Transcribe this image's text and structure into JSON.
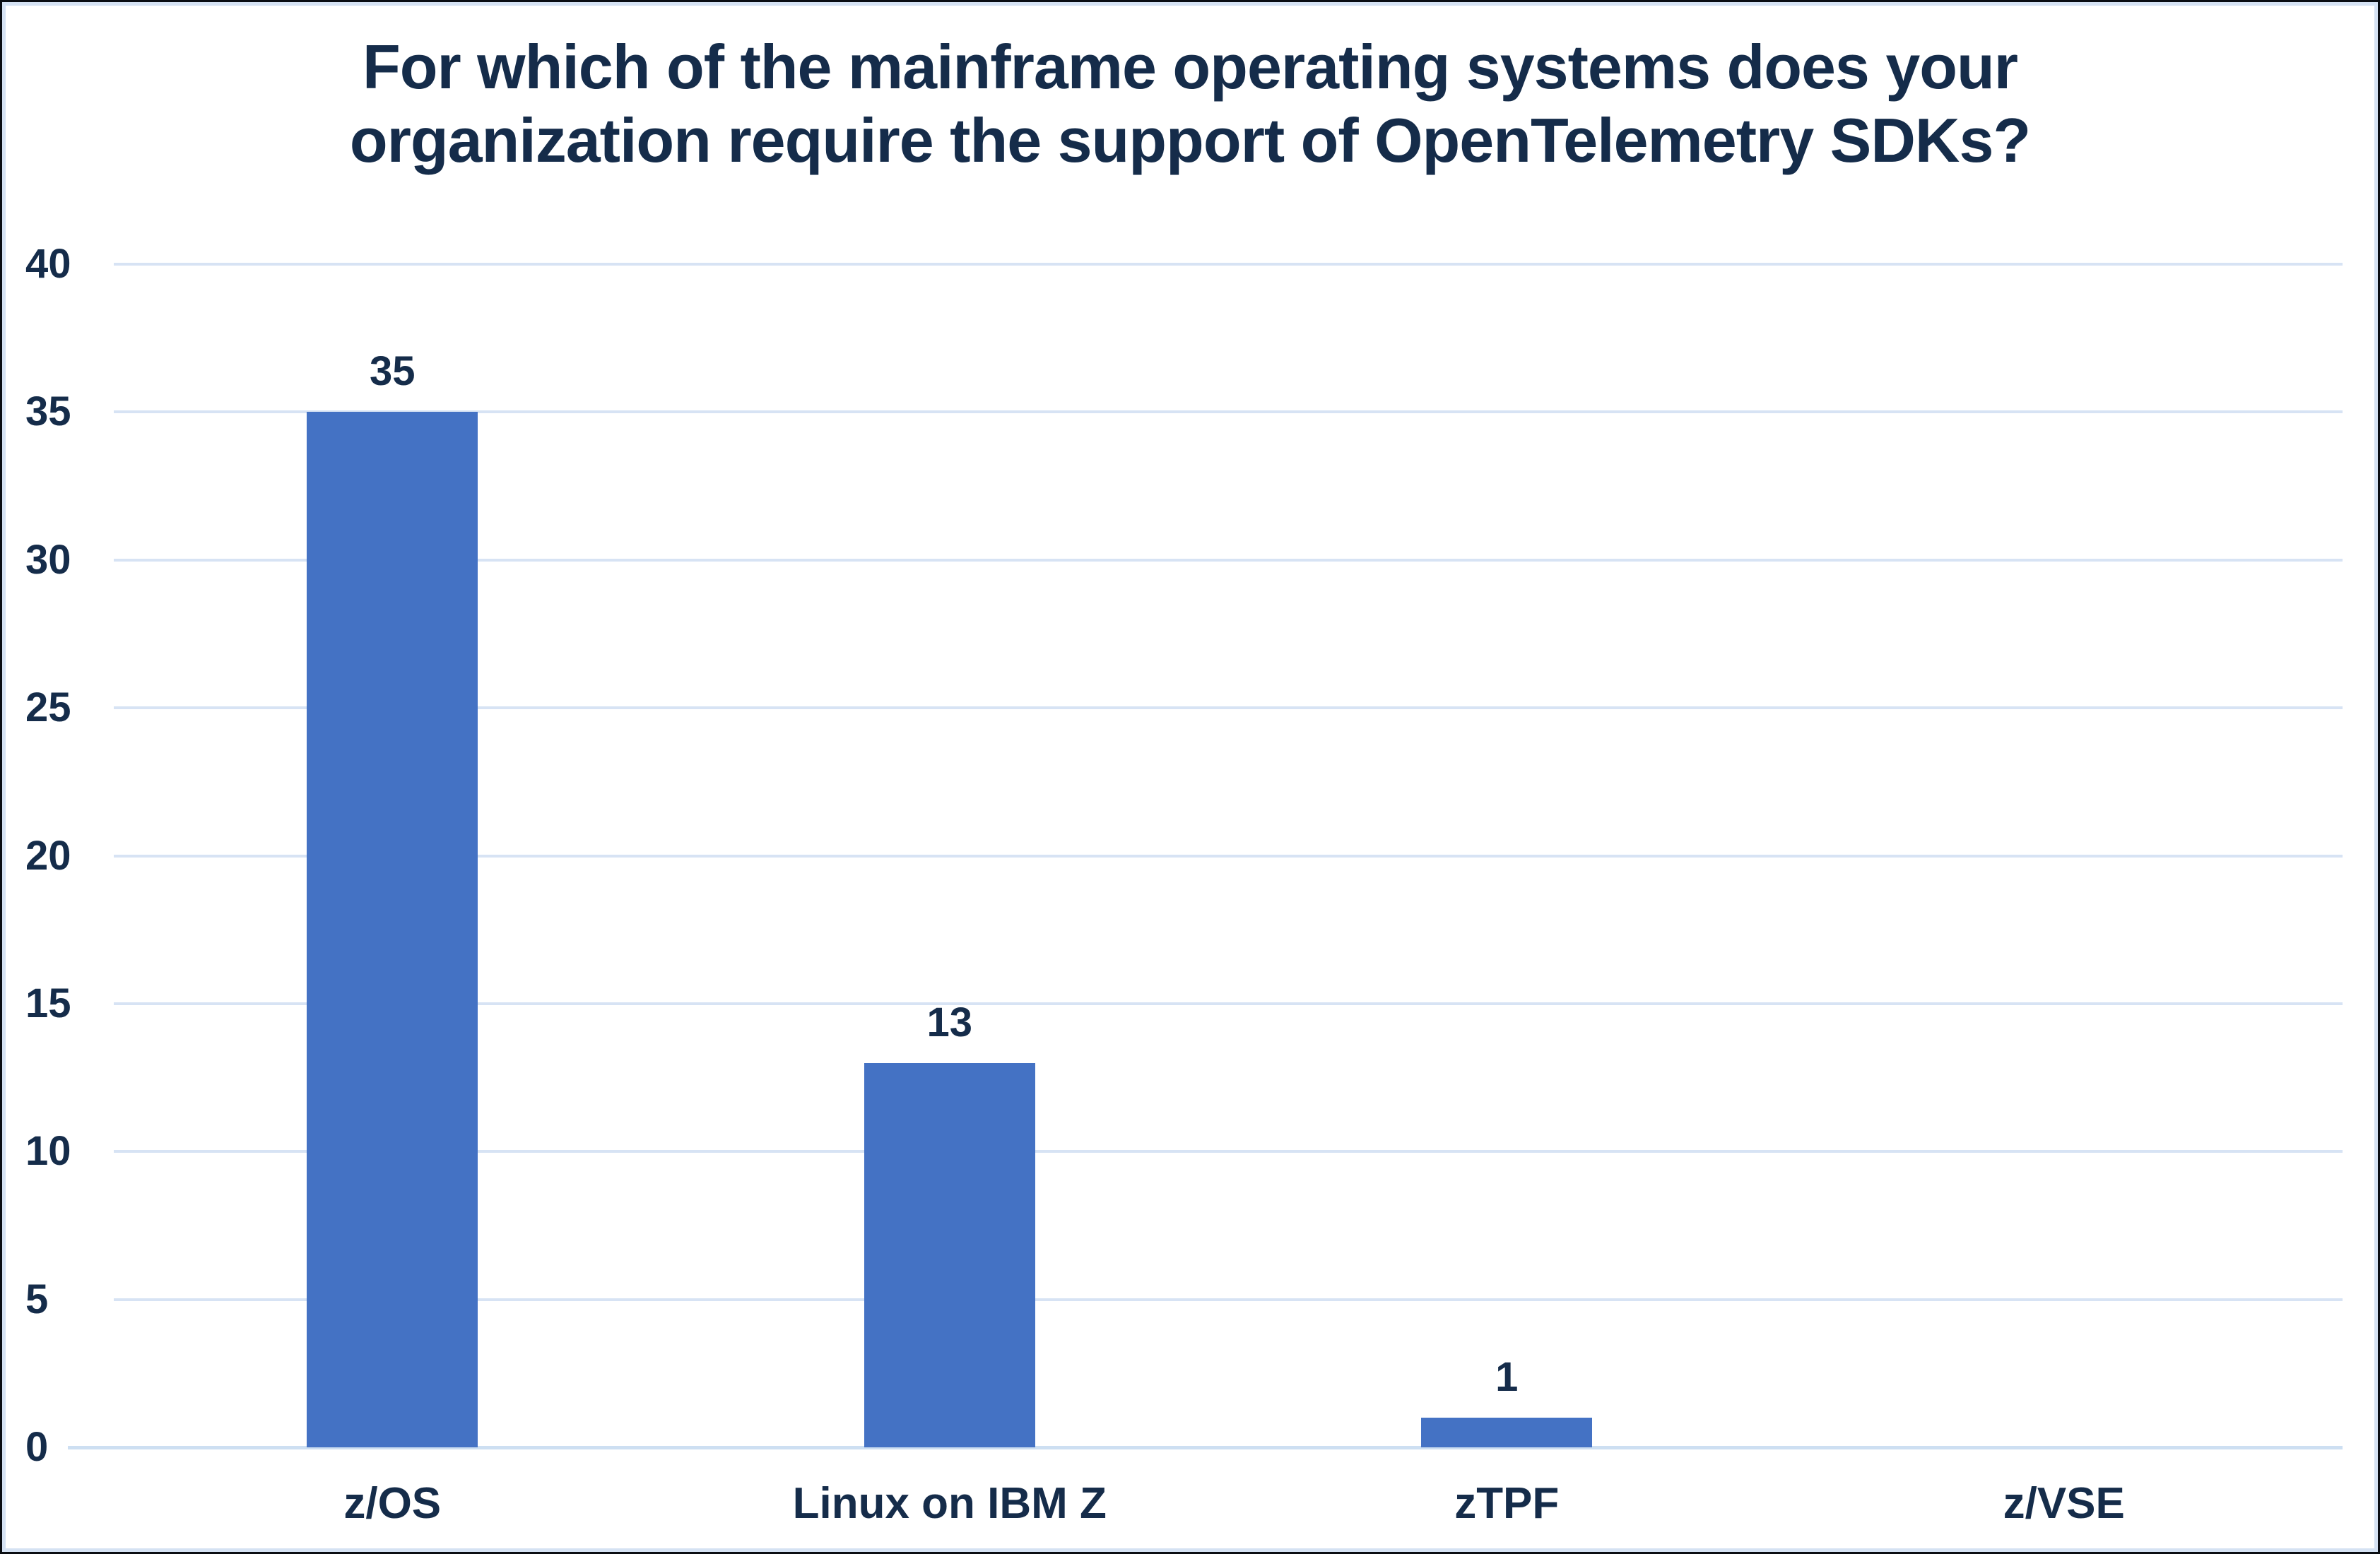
{
  "chart_data": {
    "type": "bar",
    "title": "For which of the mainframe operating systems does your\norganization require the support of OpenTelemetry SDKs?",
    "categories": [
      "z/OS",
      "Linux on IBM Z",
      "zTPF",
      "z/VSE"
    ],
    "values": [
      35,
      13,
      1,
      0
    ],
    "data_labels": [
      "35",
      "13",
      "1",
      ""
    ],
    "xlabel": "",
    "ylabel": "",
    "ylim": [
      0,
      40
    ],
    "ytick_step": 5,
    "ytick_labels": [
      "0",
      "5",
      "10",
      "15",
      "20",
      "25",
      "30",
      "35",
      "40"
    ],
    "grid": true,
    "legend": "none",
    "bar_color": "#4472C4"
  },
  "colors": {
    "bar": "#4472C4",
    "text": "#152C4A",
    "gridline": "#D7E3F4",
    "axis_line": "#CDDFF2",
    "background": "#FFFFFF",
    "border_outer": "#0A0D12",
    "border_inner": "#D5E2F3"
  }
}
